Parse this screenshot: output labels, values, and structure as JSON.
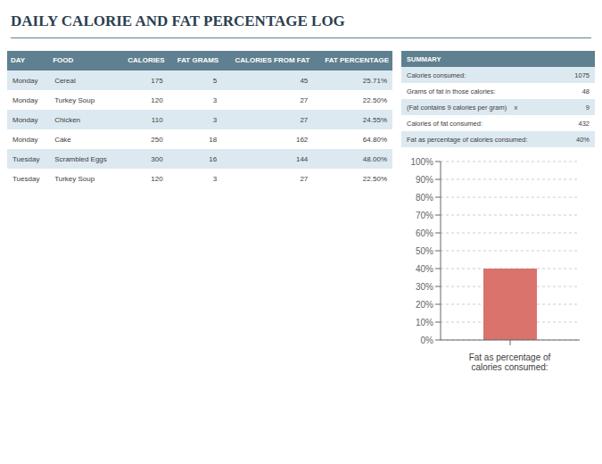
{
  "chart_data": {
    "type": "bar",
    "title": "DAILY CALORIE AND FAT PERCENTAGE LOG",
    "tables": [
      {
        "headers": [
          "DAY",
          "FOOD",
          "CALORIES",
          "FAT GRAMS",
          "CALORIES FROM FAT",
          "FAT PERCENTAGE"
        ],
        "rows": [
          [
            "Monday",
            "Cereal",
            "175",
            "5",
            "45",
            "25.71%"
          ],
          [
            "Monday",
            "Turkey Soup",
            "120",
            "3",
            "27",
            "22.50%"
          ],
          [
            "Monday",
            "Chicken",
            "110",
            "3",
            "27",
            "24.55%"
          ],
          [
            "Monday",
            "Cake",
            "250",
            "18",
            "162",
            "64.80%"
          ],
          [
            "Tuesday",
            "Scrambled Eggs",
            "300",
            "16",
            "144",
            "48.00%"
          ],
          [
            "Tuesday",
            "Turkey Soup",
            "120",
            "3",
            "27",
            "22.50%"
          ]
        ]
      },
      {
        "headers": [
          "SUMMARY"
        ],
        "rows": [
          [
            "Calories consumed:",
            "1075"
          ],
          [
            "Grams of fat in those calories:",
            "48"
          ],
          [
            "(Fat contains 9 calories per gram)    x",
            "9"
          ],
          [
            "Calories of fat consumed:",
            "432"
          ],
          [
            "Fat as percentage of calories consumed:",
            "40%"
          ]
        ]
      }
    ],
    "categories": [
      null
    ],
    "values": [
      40
    ],
    "color": "#d9736b",
    "ylim": [
      0,
      100
    ],
    "yticks": [
      {
        "value": 0,
        "label": "0%"
      },
      {
        "value": 10,
        "label": "10%"
      },
      {
        "value": 20,
        "label": "20%"
      },
      {
        "value": 30,
        "label": "30%"
      },
      {
        "value": 40,
        "label": "40%"
      },
      {
        "value": 50,
        "label": "50%"
      },
      {
        "value": 60,
        "label": "60%"
      },
      {
        "value": 70,
        "label": "70%"
      },
      {
        "value": 80,
        "label": "80%"
      },
      {
        "value": 90,
        "label": "90%"
      },
      {
        "value": 100,
        "label": "100%"
      }
    ],
    "grid": true,
    "xlabel": "Fat as percentage of\ncalories consumed:"
  }
}
